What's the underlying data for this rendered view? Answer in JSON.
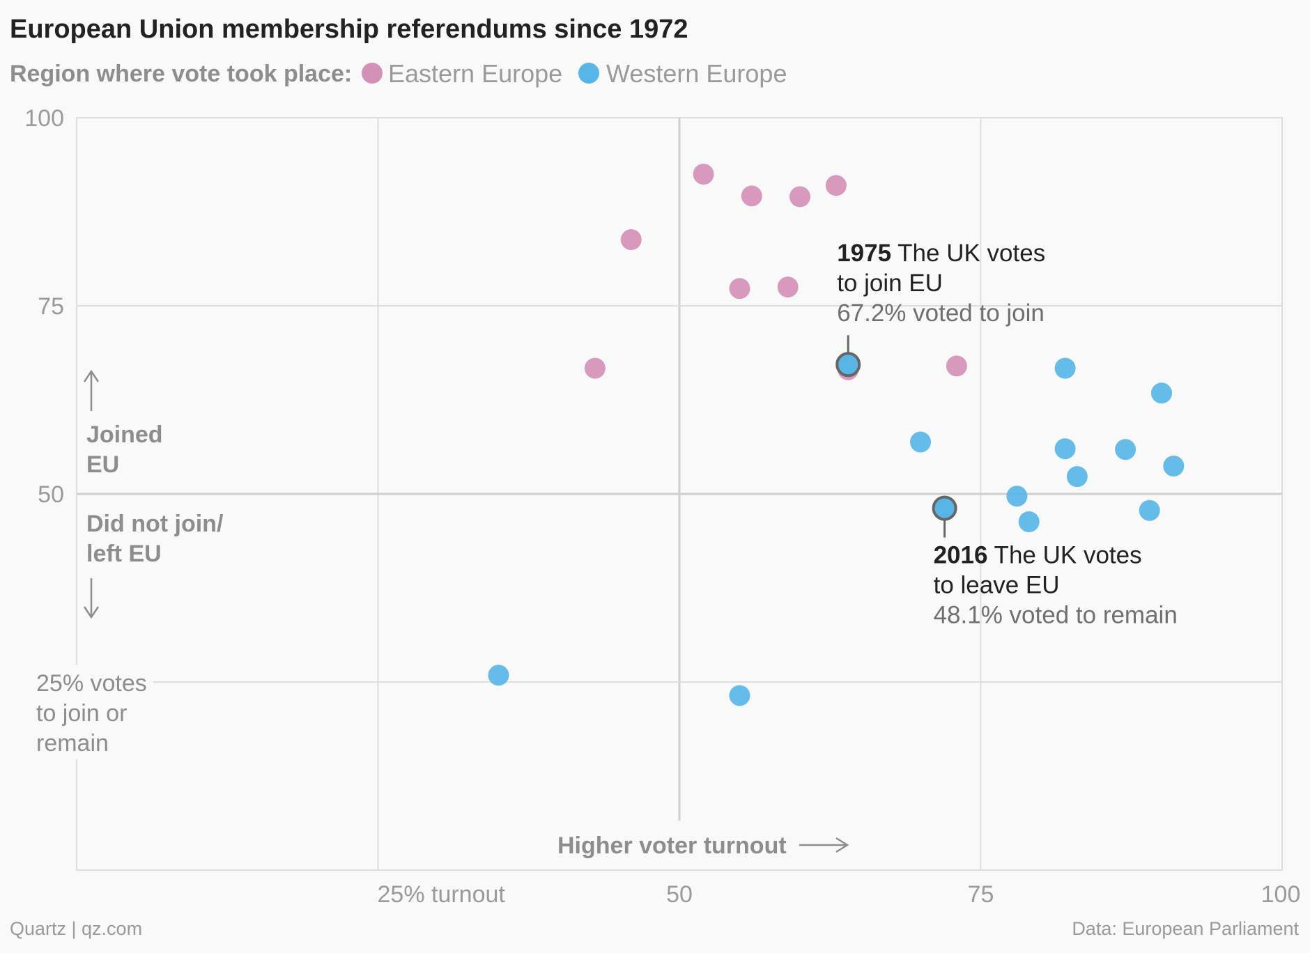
{
  "colors": {
    "eastern": "#d491b7",
    "western": "#58b6e6",
    "highlight_stroke": "#666666",
    "arrow": "#8d8d8d"
  },
  "chart_data": {
    "type": "scatter",
    "title": "European Union membership referendums since 1972",
    "legend_label": "Region where vote took place:",
    "legend_placement": "top-left",
    "xlabel": "Higher voter turnout",
    "xlim": [
      0,
      100
    ],
    "ylim": [
      0,
      100
    ],
    "grid": true,
    "x_ticks": [
      {
        "value": 25,
        "label": "25% turnout"
      },
      {
        "value": 50,
        "label": "50"
      },
      {
        "value": 75,
        "label": "75"
      },
      {
        "value": 100,
        "label": "100"
      }
    ],
    "y_ticks": [
      {
        "value": 100,
        "label": "100"
      },
      {
        "value": 75,
        "label": "75"
      },
      {
        "value": 50,
        "label": "50"
      }
    ],
    "y_note": [
      "25% votes",
      "to join or",
      "remain"
    ],
    "upper_label": [
      "Joined",
      "EU"
    ],
    "lower_label": [
      "Did not join/",
      "left EU"
    ],
    "series": [
      {
        "name": "Eastern Europe",
        "color": "#d491b7",
        "points": [
          {
            "x": 52,
            "y": 92.5
          },
          {
            "x": 56,
            "y": 89.6
          },
          {
            "x": 60,
            "y": 89.5
          },
          {
            "x": 63,
            "y": 91.0
          },
          {
            "x": 46,
            "y": 83.8
          },
          {
            "x": 55,
            "y": 77.3
          },
          {
            "x": 59,
            "y": 77.5
          },
          {
            "x": 43,
            "y": 66.7
          },
          {
            "x": 73,
            "y": 67.0
          },
          {
            "x": 64,
            "y": 66.5
          }
        ]
      },
      {
        "name": "Western Europe",
        "color": "#58b6e6",
        "points": [
          {
            "x": 82,
            "y": 66.7
          },
          {
            "x": 90,
            "y": 63.4
          },
          {
            "x": 70,
            "y": 56.9
          },
          {
            "x": 82,
            "y": 56.0
          },
          {
            "x": 87,
            "y": 55.9
          },
          {
            "x": 91,
            "y": 53.7
          },
          {
            "x": 83,
            "y": 52.3
          },
          {
            "x": 78,
            "y": 49.7
          },
          {
            "x": 79,
            "y": 46.3
          },
          {
            "x": 89,
            "y": 47.8
          },
          {
            "x": 35,
            "y": 25.9
          },
          {
            "x": 55,
            "y": 23.2
          }
        ]
      }
    ],
    "annotations": [
      {
        "x": 64,
        "y": 67.2,
        "year": "1975",
        "text1": "The UK votes",
        "text2": "to join EU",
        "text3": "67.2% voted to join",
        "position": "above"
      },
      {
        "x": 72,
        "y": 48.1,
        "year": "2016",
        "text1": "The UK votes",
        "text2": "to leave EU",
        "text3": "48.1% voted to remain",
        "position": "below"
      }
    ]
  },
  "footer": {
    "left": "Quartz | qz.com",
    "right": "Data: European Parliament"
  }
}
